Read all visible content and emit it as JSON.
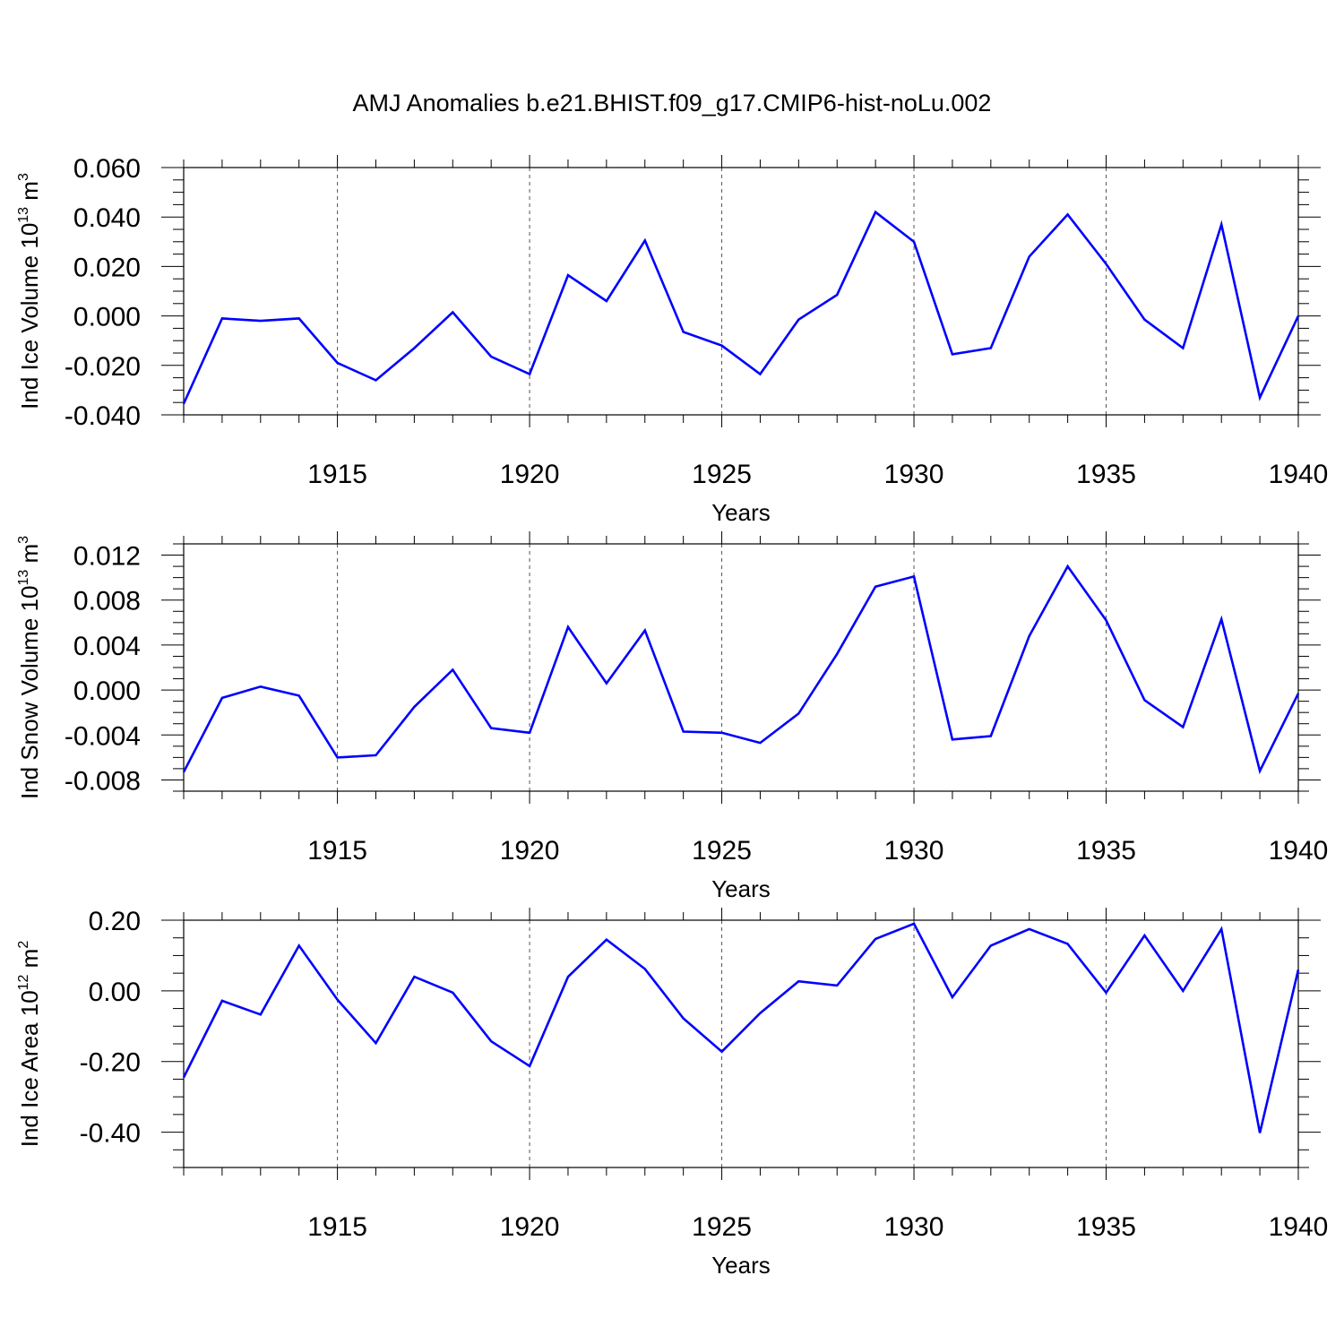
{
  "title": "AMJ Anomalies b.e21.BHIST.f09_g17.CMIP6-hist-noLu.002",
  "chart_data": [
    {
      "type": "line",
      "name": "ice-volume",
      "ylabel": "Ind Ice Volume 10",
      "ylabel_exp": "13",
      "ylabel_unit": "m",
      "ylabel_unit_exp": "3",
      "xlabel": "Years",
      "xlim": [
        1911,
        1940
      ],
      "ylim": [
        -0.04,
        0.06
      ],
      "yticks": [
        -0.04,
        -0.02,
        0.0,
        0.02,
        0.04,
        0.06
      ],
      "ytick_labels": [
        "-0.040",
        "-0.020",
        "0.000",
        "0.020",
        "0.040",
        "0.060"
      ],
      "yminor_step": 0.005,
      "xticks": [
        1915,
        1920,
        1925,
        1930,
        1935,
        1940
      ],
      "xtick_labels": [
        "1915",
        "1920",
        "1925",
        "1930",
        "1935",
        "1940"
      ],
      "grid": "dashed vertical at major x ticks",
      "color": "#0000ff",
      "x": [
        1911,
        1912,
        1913,
        1914,
        1915,
        1916,
        1917,
        1918,
        1919,
        1920,
        1921,
        1922,
        1923,
        1924,
        1925,
        1926,
        1927,
        1928,
        1929,
        1930,
        1931,
        1932,
        1933,
        1934,
        1935,
        1936,
        1937,
        1938,
        1939,
        1940
      ],
      "values": [
        -0.0355,
        -0.001,
        -0.002,
        -0.001,
        -0.019,
        -0.026,
        -0.013,
        0.0015,
        -0.0165,
        -0.0235,
        0.0165,
        0.006,
        0.0305,
        -0.0065,
        -0.012,
        -0.0235,
        -0.0015,
        0.0085,
        0.042,
        0.03,
        -0.0155,
        -0.013,
        0.024,
        0.041,
        0.021,
        -0.0015,
        -0.013,
        0.037,
        -0.033,
        0.0
      ]
    },
    {
      "type": "line",
      "name": "snow-volume",
      "ylabel": "Ind Snow Volume 10",
      "ylabel_exp": "13",
      "ylabel_unit": "m",
      "ylabel_unit_exp": "3",
      "xlabel": "Years",
      "xlim": [
        1911,
        1940
      ],
      "ylim": [
        -0.009,
        0.013
      ],
      "yticks": [
        -0.008,
        -0.004,
        0.0,
        0.004,
        0.008,
        0.012
      ],
      "ytick_labels": [
        "-0.008",
        "-0.004",
        "0.000",
        "0.004",
        "0.008",
        "0.012"
      ],
      "yminor_step": 0.001,
      "xticks": [
        1915,
        1920,
        1925,
        1930,
        1935,
        1940
      ],
      "xtick_labels": [
        "1915",
        "1920",
        "1925",
        "1930",
        "1935",
        "1940"
      ],
      "grid": "dashed vertical at major x ticks",
      "color": "#0000ff",
      "x": [
        1911,
        1912,
        1913,
        1914,
        1915,
        1916,
        1917,
        1918,
        1919,
        1920,
        1921,
        1922,
        1923,
        1924,
        1925,
        1926,
        1927,
        1928,
        1929,
        1930,
        1931,
        1932,
        1933,
        1934,
        1935,
        1936,
        1937,
        1938,
        1939,
        1940
      ],
      "values": [
        -0.0073,
        -0.0007,
        0.0003,
        -0.0005,
        -0.006,
        -0.0058,
        -0.0015,
        0.0018,
        -0.0034,
        -0.0038,
        0.0056,
        0.0006,
        0.0053,
        -0.0037,
        -0.0038,
        -0.0047,
        -0.0021,
        0.0032,
        0.0092,
        0.0101,
        -0.0044,
        -0.0041,
        0.0048,
        0.011,
        0.0062,
        -0.0009,
        -0.0033,
        0.0063,
        -0.0072,
        -0.0003
      ]
    },
    {
      "type": "line",
      "name": "ice-area",
      "ylabel": "Ind Ice Area 10",
      "ylabel_exp": "12",
      "ylabel_unit": "m",
      "ylabel_unit_exp": "2",
      "xlabel": "Years",
      "xlim": [
        1911,
        1940
      ],
      "ylim": [
        -0.5,
        0.2
      ],
      "yticks": [
        -0.4,
        -0.2,
        0.0,
        0.2
      ],
      "ytick_labels": [
        "-0.40",
        "-0.20",
        "0.00",
        "0.20"
      ],
      "yminor_step": 0.05,
      "xticks": [
        1915,
        1920,
        1925,
        1930,
        1935,
        1940
      ],
      "xtick_labels": [
        "1915",
        "1920",
        "1925",
        "1930",
        "1935",
        "1940"
      ],
      "grid": "dashed vertical at major x ticks",
      "color": "#0000ff",
      "x": [
        1911,
        1912,
        1913,
        1914,
        1915,
        1916,
        1917,
        1918,
        1919,
        1920,
        1921,
        1922,
        1923,
        1924,
        1925,
        1926,
        1927,
        1928,
        1929,
        1930,
        1931,
        1932,
        1933,
        1934,
        1935,
        1936,
        1937,
        1938,
        1939,
        1940
      ],
      "values": [
        -0.245,
        -0.028,
        -0.067,
        0.128,
        -0.025,
        -0.148,
        0.04,
        -0.005,
        -0.143,
        -0.213,
        0.04,
        0.145,
        0.062,
        -0.078,
        -0.172,
        -0.063,
        0.027,
        0.015,
        0.147,
        0.19,
        -0.018,
        0.128,
        0.175,
        0.133,
        -0.005,
        0.157,
        0.0,
        0.175,
        -0.402,
        0.06
      ]
    }
  ]
}
